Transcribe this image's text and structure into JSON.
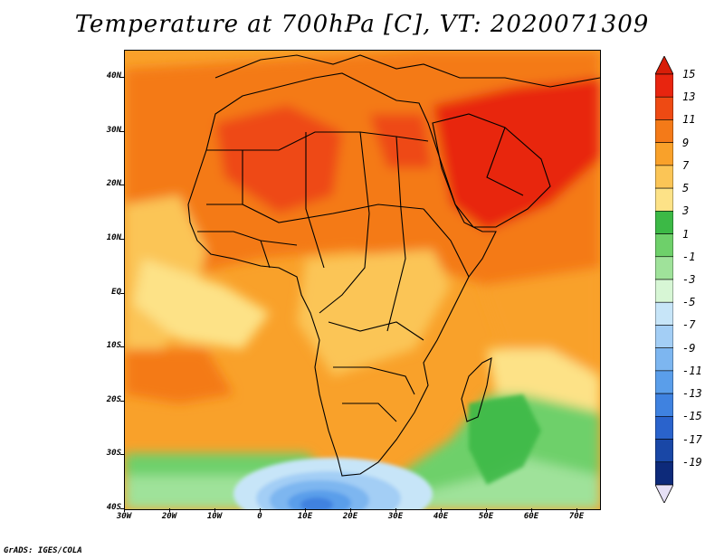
{
  "title": "Temperature at 700hPa [C], VT: 2020071309",
  "credit": "GrADS: IGES/COLA",
  "axes": {
    "lat_ticks": [
      "40N",
      "30N",
      "20N",
      "10N",
      "EQ",
      "10S",
      "20S",
      "30S",
      "40S"
    ],
    "lon_ticks": [
      "30W",
      "20W",
      "10W",
      "0",
      "10E",
      "20E",
      "30E",
      "40E",
      "50E",
      "60E",
      "70E"
    ]
  },
  "colorbar": {
    "labels": [
      "15",
      "13",
      "11",
      "9",
      "7",
      "5",
      "3",
      "1",
      "-1",
      "-3",
      "-5",
      "-7",
      "-9",
      "-11",
      "-13",
      "-15",
      "-17",
      "-19"
    ],
    "colors": [
      "#e8250f",
      "#ee4a13",
      "#f47a18",
      "#f9a12a",
      "#fbc556",
      "#fde287",
      "#3cb946",
      "#6ed06a",
      "#9fe29a",
      "#d7f6d5",
      "#c7e5f8",
      "#a3cef5",
      "#7db6f0",
      "#5a9eea",
      "#3f82e0",
      "#2a63cc",
      "#1947a6",
      "#0d2a7a"
    ],
    "upper_arrow_color": "#d81e08",
    "lower_arrow_color": "#e6e0f6"
  }
}
